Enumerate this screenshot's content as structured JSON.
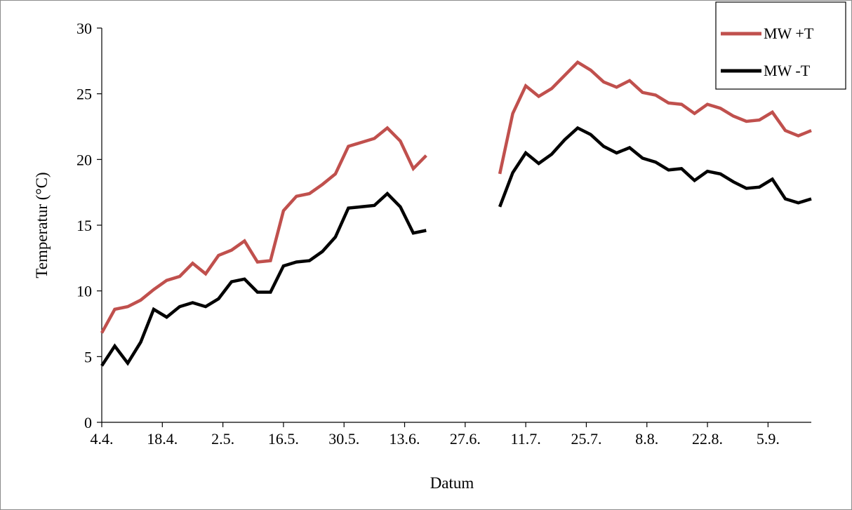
{
  "chart_data": {
    "type": "line",
    "xlabel": "Datum",
    "ylabel": "Temperatur (°C)",
    "ylim": [
      0,
      30
    ],
    "yticks": [
      "0",
      "5",
      "10",
      "15",
      "20",
      "25",
      "30"
    ],
    "x_tick_labels": [
      "4.4.",
      "18.4.",
      "2.5.",
      "16.5.",
      "30.5.",
      "13.6.",
      "27.6.",
      "11.7.",
      "25.7.",
      "8.8.",
      "22.8.",
      "5.9."
    ],
    "x_tick_days": [
      0,
      14,
      28,
      42,
      56,
      70,
      84,
      98,
      112,
      126,
      140,
      154
    ],
    "x_range_days": [
      0,
      164
    ],
    "grid": false,
    "legend_position": "top-right",
    "series": [
      {
        "name": "MW +T",
        "color": "#c0504d",
        "segments": [
          {
            "start_day": 0,
            "step_days": 3,
            "values": [
              6.8,
              8.6,
              8.8,
              9.3,
              10.1,
              10.8,
              11.1,
              12.1,
              11.3,
              12.7,
              13.1,
              13.8,
              12.2,
              12.3,
              16.1,
              17.2,
              17.4,
              18.1,
              18.9,
              21.0,
              21.3,
              21.6,
              22.4,
              21.4,
              19.3,
              20.3
            ]
          },
          {
            "start_day": 92,
            "step_days": 3,
            "values": [
              18.9,
              23.5,
              25.6,
              24.8,
              25.4,
              26.4,
              27.4,
              26.8,
              25.9,
              25.5,
              26.0,
              25.1,
              24.9,
              24.3,
              24.2,
              23.5,
              24.2,
              23.9,
              23.3,
              22.9,
              23.0,
              23.6,
              22.2,
              21.8,
              22.2
            ]
          }
        ]
      },
      {
        "name": "MW -T",
        "color": "#000000",
        "segments": [
          {
            "start_day": 0,
            "step_days": 3,
            "values": [
              4.3,
              5.8,
              4.5,
              6.1,
              8.6,
              8.0,
              8.8,
              9.1,
              8.8,
              9.4,
              10.7,
              10.9,
              9.9,
              9.9,
              11.9,
              12.2,
              12.3,
              13.0,
              14.1,
              16.3,
              16.4,
              16.5,
              17.4,
              16.4,
              14.4,
              14.6
            ]
          },
          {
            "start_day": 92,
            "step_days": 3,
            "values": [
              16.4,
              19.0,
              20.5,
              19.7,
              20.4,
              21.5,
              22.4,
              21.9,
              21.0,
              20.5,
              20.9,
              20.1,
              19.8,
              19.2,
              19.3,
              18.4,
              19.1,
              18.9,
              18.3,
              17.8,
              17.9,
              18.5,
              17.0,
              16.7,
              17.0
            ]
          }
        ]
      }
    ]
  }
}
